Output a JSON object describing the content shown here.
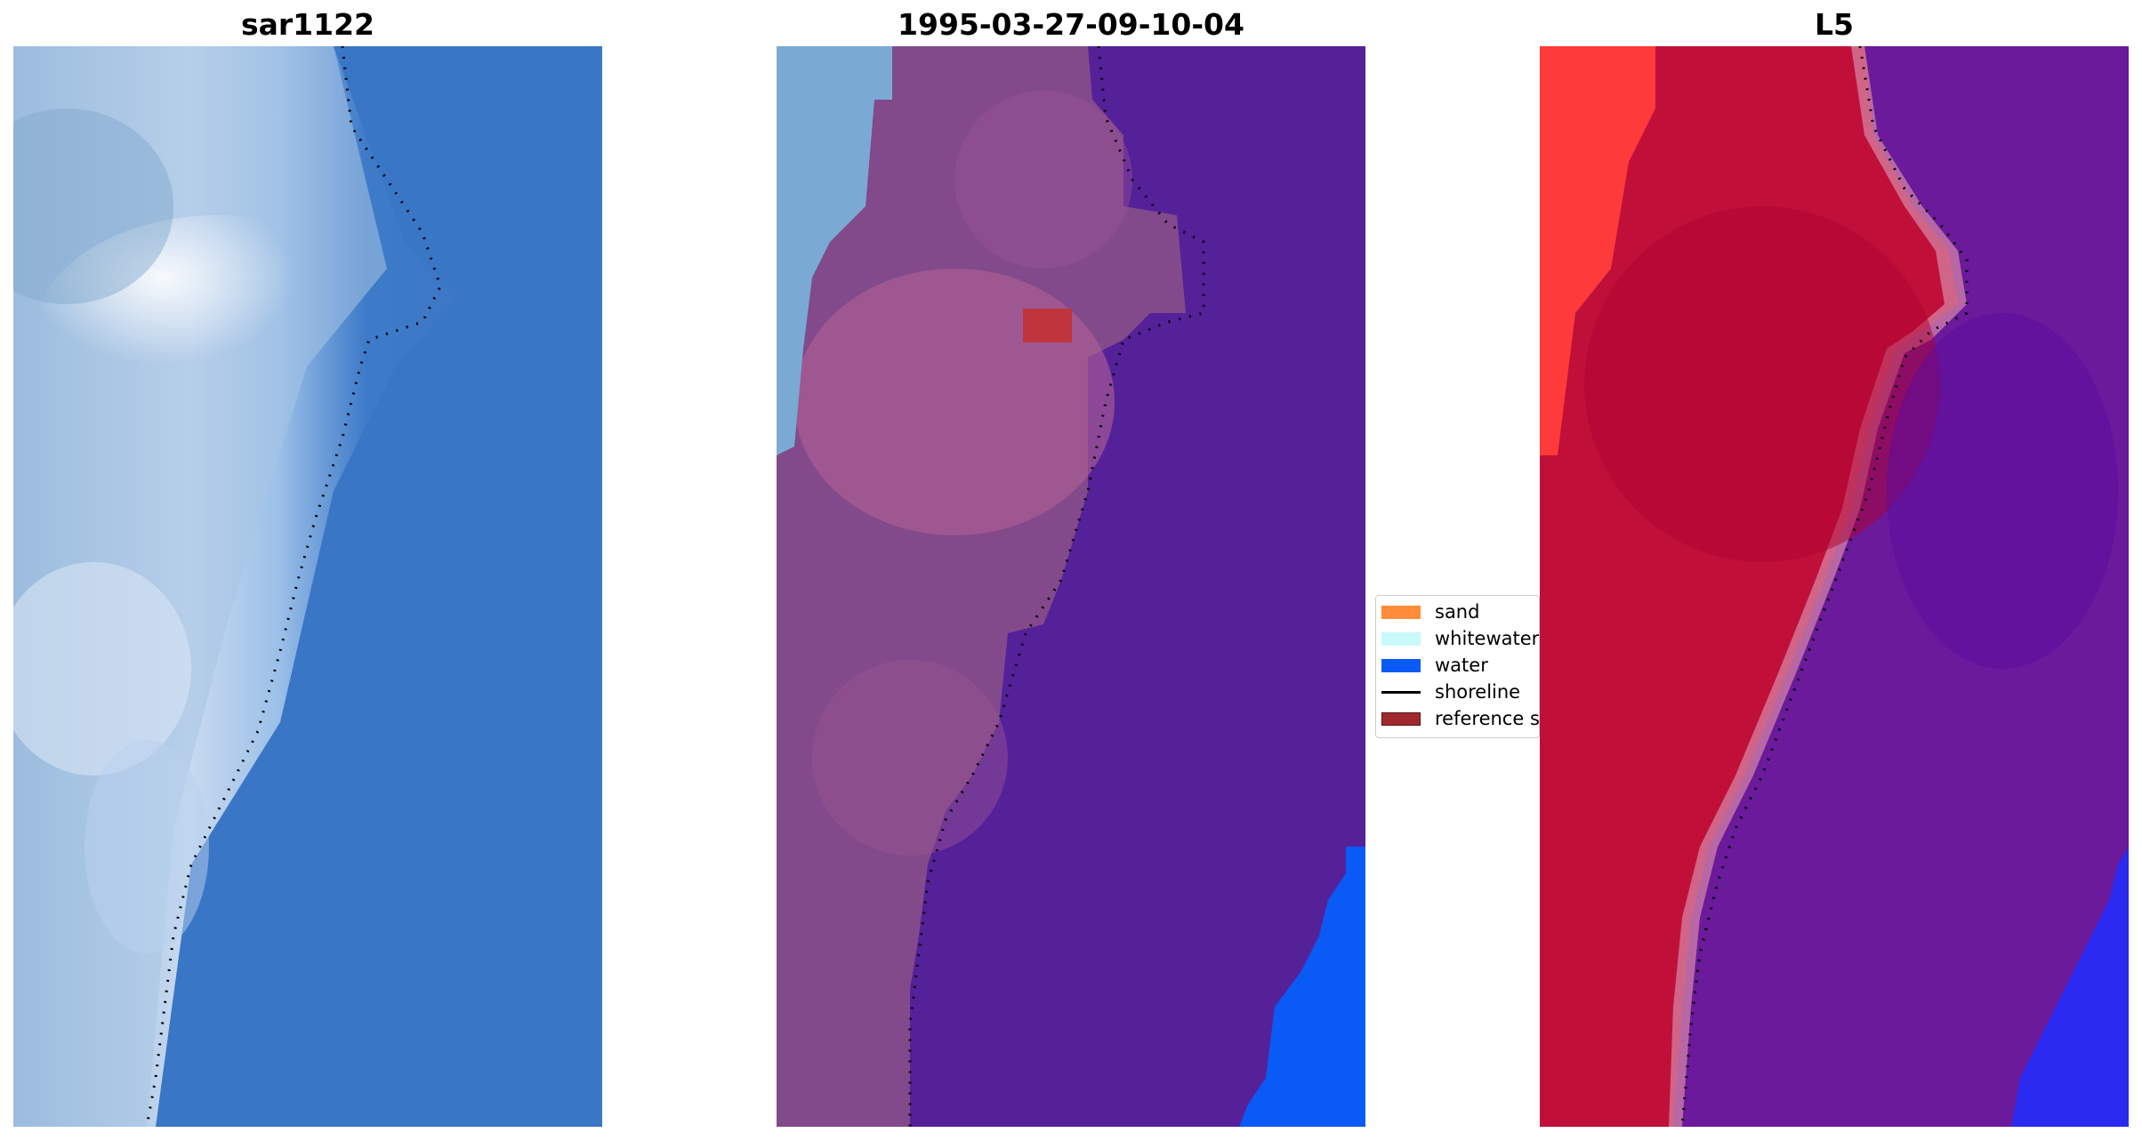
{
  "panels": [
    {
      "title": "sar1122"
    },
    {
      "title": "1995-03-27-09-10-04"
    },
    {
      "title": "L5"
    }
  ],
  "legend": {
    "items": [
      {
        "label": "sand",
        "color": "#ff8c3a",
        "kind": "patch"
      },
      {
        "label": "whitewater",
        "color": "#c8fafa",
        "kind": "patch"
      },
      {
        "label": "water",
        "color": "#0a5af5",
        "kind": "patch"
      },
      {
        "label": "shoreline",
        "color": "#000000",
        "kind": "line"
      },
      {
        "label": "reference s",
        "color": "#a0292e",
        "kind": "patch"
      }
    ]
  },
  "colors": {
    "rgb_sky": "#3d7ac8",
    "rgb_surf": "#dfe9f5",
    "class_land": "#824a8a",
    "class_sea": "#552199",
    "class_water": "#0a5af5",
    "class_whitewater_edge": "#7aaad4",
    "class_reference": "#c0353c",
    "false_color_land": "#c0103a",
    "false_color_sea": "#6a1a9a",
    "false_color_bright": "#ff3a3a",
    "false_color_water": "#2a2af0"
  }
}
